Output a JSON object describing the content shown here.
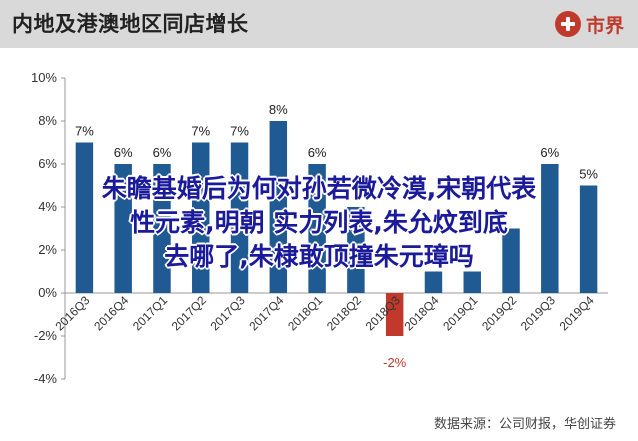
{
  "header": {
    "title": "内地及港澳地区同店增长",
    "logo_text": "市界"
  },
  "chart_data": {
    "type": "bar",
    "title": "",
    "xlabel": "",
    "ylabel": "",
    "categories": [
      "2016Q3",
      "2016Q4",
      "2017Q1",
      "2017Q2",
      "2017Q3",
      "2017Q4",
      "2018Q1",
      "2018Q2",
      "2018Q3",
      "2018Q4",
      "2019Q1",
      "2019Q2",
      "2019Q3",
      "2019Q4"
    ],
    "values": [
      7,
      6,
      6,
      7,
      7,
      8,
      6,
      4,
      -2,
      1,
      1,
      3,
      6,
      5
    ],
    "data_labels": [
      "7%",
      "6%",
      "6%",
      "7%",
      "7%",
      "8%",
      "6%",
      "",
      "-2%",
      "",
      "",
      "",
      "6%",
      "5%"
    ],
    "ylim": [
      -4,
      10
    ],
    "yticks": [
      -4,
      -2,
      0,
      2,
      4,
      6,
      8,
      10
    ],
    "ytick_labels": [
      "-4%",
      "-2%",
      "0%",
      "2%",
      "4%",
      "6%",
      "8%",
      "10%"
    ],
    "grid": false,
    "legend": "none",
    "colors": {
      "positive": "#1f5a93",
      "negative": "#c0392b",
      "negative_label": "#c0392b"
    }
  },
  "overlay": {
    "lines": [
      "朱瞻基婚后为何对孙若微冷漠,宋朝代表",
      "性元素,明朝 实力列表,朱允炆到底",
      "去哪了,朱棣敢顶撞朱元璋吗"
    ]
  },
  "source": "数据来源：公司财报，华创证券"
}
